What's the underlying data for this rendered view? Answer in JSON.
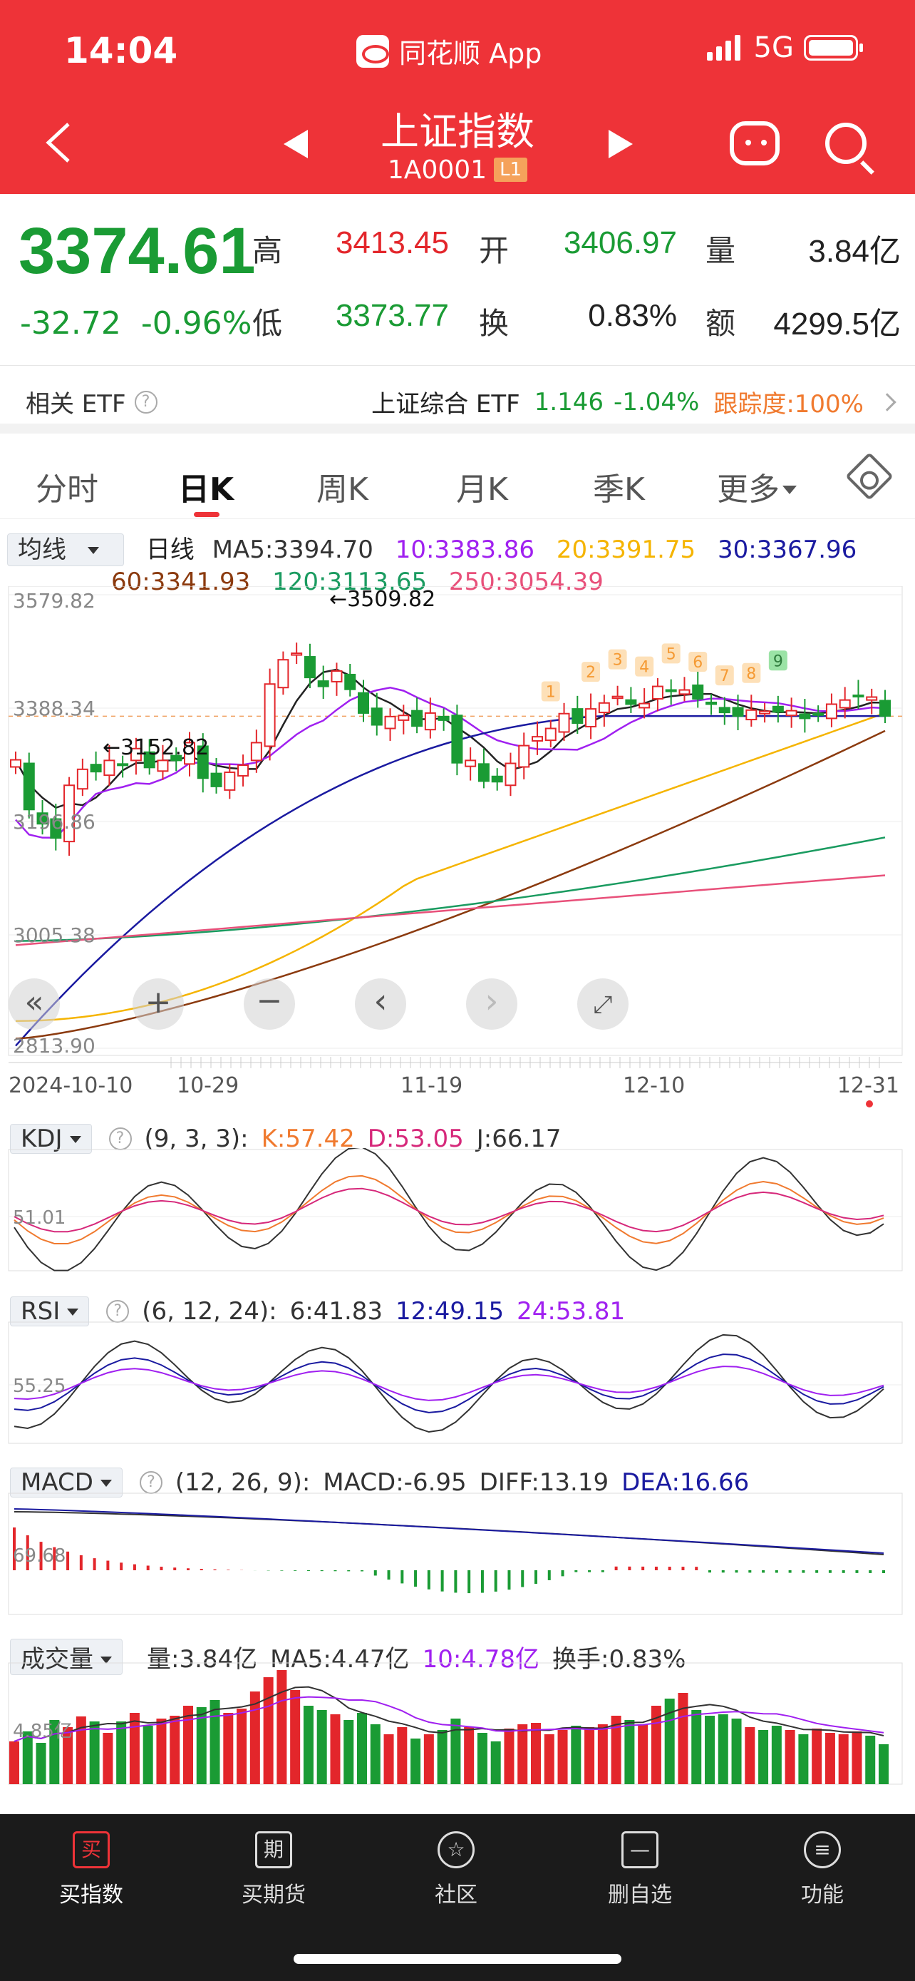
{
  "status_bar": {
    "time": "14:04",
    "app": "同花顺 App",
    "network": "5G"
  },
  "nav": {
    "title": "上证指数",
    "code": "1A0001",
    "level": "L1"
  },
  "quote": {
    "price": "3374.61",
    "change": "-32.72",
    "change_pct": "-0.96%",
    "high_label": "高",
    "high": "3413.45",
    "low_label": "低",
    "low": "3373.77",
    "open_label": "开",
    "open": "3406.97",
    "turnover_label": "换",
    "turnover": "0.83%",
    "volume_label": "量",
    "volume": "3.84亿",
    "amount_label": "额",
    "amount": "4299.5亿"
  },
  "etf": {
    "label": "相关 ETF",
    "name": "上证综合 ETF",
    "price": "1.146",
    "pct": "-1.04%",
    "tracking": "跟踪度:100%"
  },
  "tabs": [
    "分时",
    "日K",
    "周K",
    "月K",
    "季K",
    "更多"
  ],
  "ma": {
    "selector": "均线",
    "period": "日线",
    "ma5": "MA5:3394.70",
    "ma10": "10:3383.86",
    "ma20": "20:3391.75",
    "ma30": "30:3367.96",
    "ma60": "60:3341.93",
    "ma120": "120:3113.65",
    "ma250": "250:3054.39"
  },
  "colors": {
    "up": "#e3262b",
    "down": "#1a9b34",
    "ma5": "#222222",
    "ma10": "#a020f0",
    "ma20": "#f5b400",
    "ma30": "#1a1aa0",
    "ma60": "#8b3a0e",
    "ma120": "#1a9b60",
    "ma250": "#e8507a"
  },
  "chart_data": [
    {
      "type": "candlestick",
      "y_ticks": [
        "3579.82",
        "3388.34",
        "3196.86",
        "3005.38",
        "2813.90"
      ],
      "ylim": [
        2813.9,
        3579.82
      ],
      "x_ticks": [
        "2024-10-10",
        "10-29",
        "11-19",
        "12-10",
        "12-31"
      ],
      "annotations": [
        "←3509.82",
        "←3152.82"
      ],
      "td_counts": [
        "1",
        "2",
        "3",
        "4",
        "5",
        "6",
        "7",
        "8",
        "9"
      ]
    },
    {
      "type": "line",
      "indicator": "KDJ",
      "params": "(9, 3, 3):",
      "k": "K:57.42",
      "d": "D:53.05",
      "j": "J:66.17",
      "y_tick": "51.01"
    },
    {
      "type": "line",
      "indicator": "RSI",
      "params": "(6, 12, 24):",
      "rsi6": "6:41.83",
      "rsi12": "12:49.15",
      "rsi24": "24:53.81",
      "y_tick": "55.25"
    },
    {
      "type": "bar",
      "indicator": "MACD",
      "params": "(12, 26, 9):",
      "macd": "MACD:-6.95",
      "diff": "DIFF:13.19",
      "dea": "DEA:16.66",
      "y_tick": "69.68"
    },
    {
      "type": "bar",
      "indicator": "成交量",
      "vol": "量:3.84亿",
      "ma5": "MA5:4.47亿",
      "ma10": "10:4.78亿",
      "turnover": "换手:0.83%",
      "y_tick": "4.85亿"
    }
  ],
  "bottom_nav": [
    {
      "label": "买指数",
      "icon": "买"
    },
    {
      "label": "买期货",
      "icon": "期"
    },
    {
      "label": "社区",
      "icon": "☆"
    },
    {
      "label": "删自选",
      "icon": "—"
    },
    {
      "label": "功能",
      "icon": "≡"
    }
  ]
}
